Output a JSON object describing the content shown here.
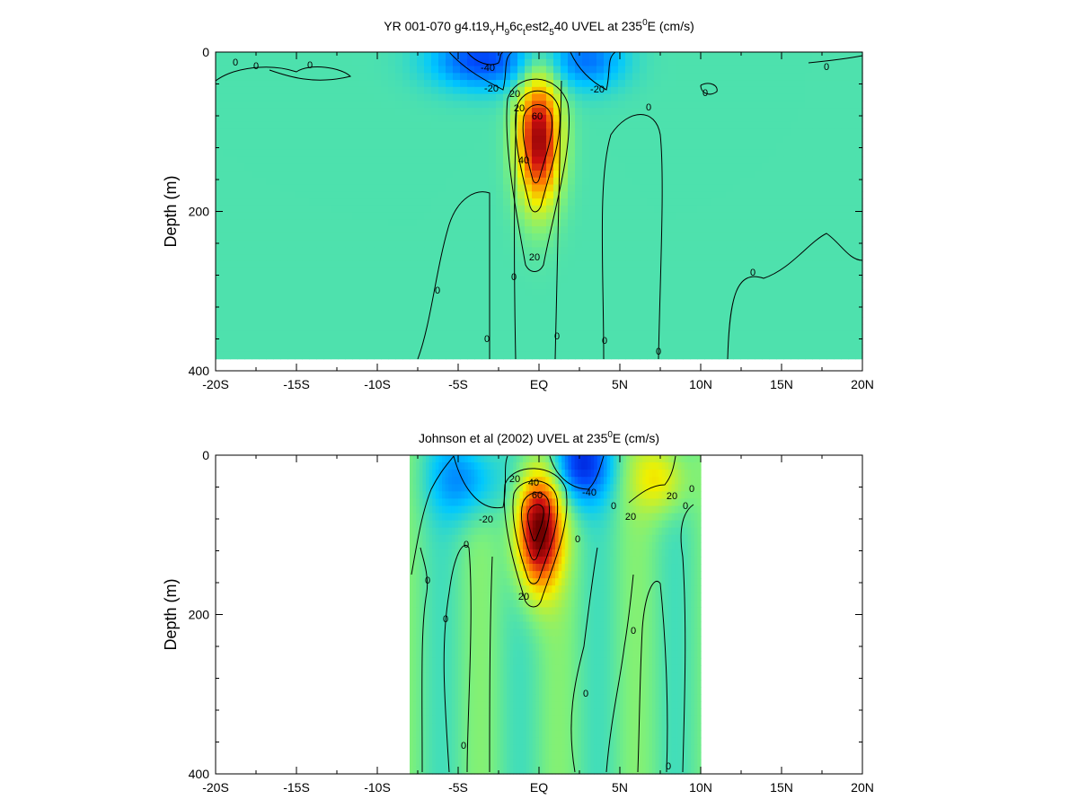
{
  "chart_data": [
    {
      "type": "heatmap",
      "title": {
        "pre": "YR 001-070 g4.t19",
        "sub1": "Y",
        "mid1": "H",
        "sub2": "9",
        "mid2": "6c",
        "sub3": "t",
        "mid3": "est2",
        "sub4": "5",
        "mid4": "40 UVEL at 235",
        "sup": "0",
        "post": "E (cm/s)"
      },
      "ylabel": "Depth (m)",
      "xlim": [
        -20,
        20
      ],
      "ylim": [
        400,
        0
      ],
      "x_ticks": [
        "-20S",
        "-15S",
        "-10S",
        "-5S",
        "EQ",
        "5N",
        "10N",
        "15N",
        "20N"
      ],
      "y_ticks": [
        "0",
        "200",
        "400"
      ],
      "colormap": [
        "#0000c0",
        "#0050ff",
        "#00c8ff",
        "#7cf07c",
        "#f0f000",
        "#ff8000",
        "#d01010",
        "#700000"
      ],
      "data_lat_range": [
        -20,
        20
      ],
      "data_depth_max": 385,
      "features": [
        {
          "kind": "core",
          "lat": 0,
          "depth": 110,
          "value": 90,
          "lat_sigma": 0.9,
          "depth_sigma": 55
        },
        {
          "kind": "surface",
          "lat": -3.5,
          "depth": 10,
          "value": -40,
          "lat_sigma": 2.2,
          "depth_sigma": 25
        },
        {
          "kind": "surface",
          "lat": 3,
          "depth": 10,
          "value": -30,
          "lat_sigma": 1.6,
          "depth_sigma": 25
        }
      ],
      "contour_labels": [
        "0",
        "0",
        "0",
        "0",
        "0",
        "0",
        "0",
        "0",
        "0",
        "0",
        "0",
        "0",
        "0",
        "-40",
        "-20",
        "-20",
        "20",
        "20",
        "40",
        "60",
        "20"
      ]
    },
    {
      "type": "heatmap",
      "title": {
        "pre": "Johnson et al (2002) UVEL at 235",
        "sup": "0",
        "post": "E (cm/s)"
      },
      "ylabel": "Depth (m)",
      "xlim": [
        -20,
        20
      ],
      "ylim": [
        400,
        0
      ],
      "x_ticks": [
        "-20S",
        "-15S",
        "-10S",
        "-5S",
        "EQ",
        "5N",
        "10N",
        "15N",
        "20N"
      ],
      "y_ticks": [
        "0",
        "200",
        "400"
      ],
      "colormap": [
        "#0000c0",
        "#0050ff",
        "#00c8ff",
        "#7cf07c",
        "#f0f000",
        "#ff8000",
        "#d01010",
        "#700000"
      ],
      "data_lat_range": [
        -8,
        10
      ],
      "data_depth_max": 400,
      "features": [
        {
          "kind": "core",
          "lat": 0,
          "depth": 95,
          "value": 100,
          "lat_sigma": 0.95,
          "depth_sigma": 50
        },
        {
          "kind": "surface",
          "lat": 2.5,
          "depth": 10,
          "value": -50,
          "lat_sigma": 1.3,
          "depth_sigma": 35
        },
        {
          "kind": "surface",
          "lat": -4.5,
          "depth": 30,
          "value": -30,
          "lat_sigma": 1.5,
          "depth_sigma": 35
        },
        {
          "kind": "surface",
          "lat": 7.5,
          "depth": 30,
          "value": 30,
          "lat_sigma": 1.2,
          "depth_sigma": 30
        }
      ],
      "contour_labels": [
        "0",
        "0",
        "0",
        "0",
        "0",
        "0",
        "0",
        "0",
        "0",
        "0",
        "0",
        "-20",
        "-40",
        "20",
        "20",
        "40",
        "60",
        "20",
        "20"
      ]
    }
  ]
}
